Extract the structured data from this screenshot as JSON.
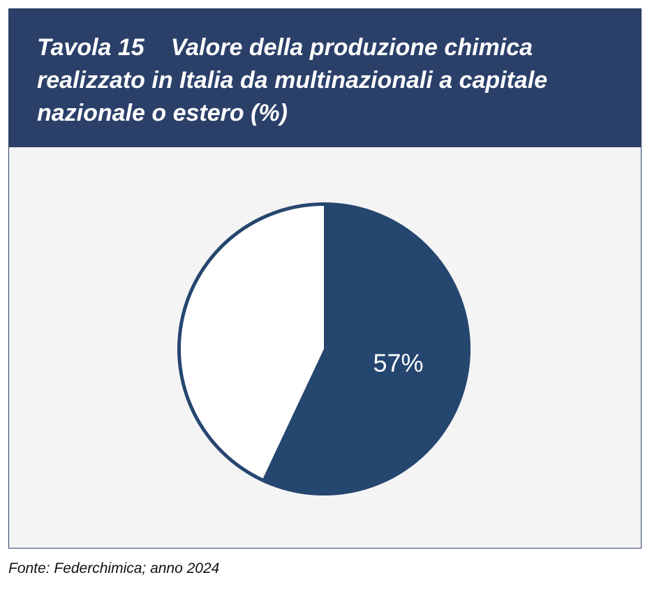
{
  "title": {
    "number": "Tavola 15",
    "text": "Valore della produzione chimica realizzato in Italia da multinazionali a capitale nazionale o estero (%)"
  },
  "source": "Fonte: Federchimica; anno 2024",
  "colors": {
    "header": "#2b4069",
    "slice_main": "#25466f",
    "slice_other": "#ffffff",
    "panel": "#f4f4f4"
  },
  "chart_data": {
    "type": "pie",
    "title": "Valore della produzione chimica realizzato in Italia da multinazionali a capitale nazionale o estero (%)",
    "slices": [
      {
        "value": 57,
        "label": "57%",
        "color": "#25466f"
      },
      {
        "value": 43,
        "label": "",
        "color": "#ffffff"
      }
    ]
  }
}
